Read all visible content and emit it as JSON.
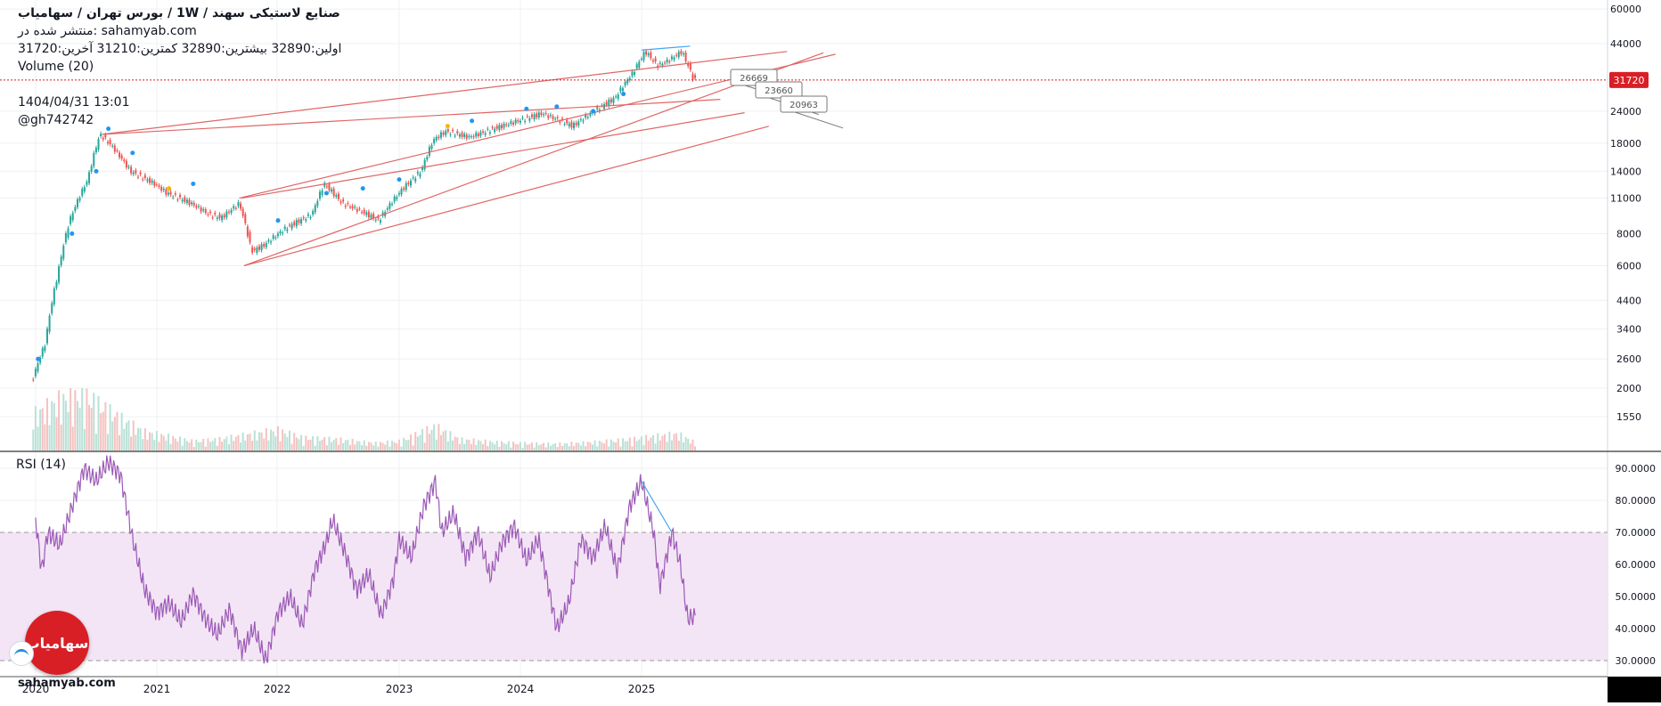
{
  "header": {
    "title": "صنایع لاستیکی سهند / 1W / بورس تهران / سهامیاب",
    "published": "منتشر شده در: sahamyab.com",
    "ohlc": "اولین:32890 بیشترین:32890 کمترین:31210 آخرین:31720",
    "volume_label": "Volume (20)",
    "datetime": "1404/04/31 13:01",
    "user": "@gh742742"
  },
  "rsi_label": "RSI (14)",
  "site_label": "sahamyab.com",
  "logo_text": "سهامیاب",
  "colors": {
    "up": "#26a69a",
    "down": "#ef5350",
    "trendline": "#e06666",
    "rsi": "#9b59b6",
    "rsi_band": "#f3e5f5",
    "last_price": "#d81f26",
    "blue_line": "#42a5f5"
  },
  "chart_data": [
    {
      "type": "candlestick",
      "title": "صنایع لاستیکی سهند / 1W",
      "scale": "log",
      "y_ticks": [
        60000,
        44000,
        31720,
        24000,
        18000,
        14000,
        11000,
        8000,
        6000,
        4400,
        3400,
        2600,
        2000,
        1550
      ],
      "last_price": 31720,
      "x_ticks": [
        "2020",
        "2021",
        "2022",
        "2023",
        "2024",
        "2025"
      ],
      "annotations": [
        "26669",
        "23660",
        "20963"
      ],
      "price_path": [
        [
          2020.0,
          2200
        ],
        [
          2020.1,
          3000
        ],
        [
          2020.2,
          5500
        ],
        [
          2020.3,
          9000
        ],
        [
          2020.45,
          13000
        ],
        [
          2020.55,
          19500
        ],
        [
          2020.65,
          17500
        ],
        [
          2020.8,
          14000
        ],
        [
          2021.0,
          12500
        ],
        [
          2021.1,
          11500
        ],
        [
          2021.3,
          10500
        ],
        [
          2021.45,
          9500
        ],
        [
          2021.55,
          9200
        ],
        [
          2021.7,
          10500
        ],
        [
          2021.8,
          6800
        ],
        [
          2021.9,
          7200
        ],
        [
          2022.1,
          8500
        ],
        [
          2022.3,
          9500
        ],
        [
          2022.4,
          12500
        ],
        [
          2022.55,
          10500
        ],
        [
          2022.7,
          9800
        ],
        [
          2022.85,
          9000
        ],
        [
          2023.05,
          12000
        ],
        [
          2023.2,
          14000
        ],
        [
          2023.3,
          18500
        ],
        [
          2023.4,
          20000
        ],
        [
          2023.6,
          19000
        ],
        [
          2023.8,
          20500
        ],
        [
          2024.0,
          22000
        ],
        [
          2024.2,
          23500
        ],
        [
          2024.35,
          22000
        ],
        [
          2024.45,
          21000
        ],
        [
          2024.6,
          23500
        ],
        [
          2024.8,
          27000
        ],
        [
          2024.95,
          34000
        ],
        [
          2025.05,
          41000
        ],
        [
          2025.15,
          36000
        ],
        [
          2025.25,
          38000
        ],
        [
          2025.35,
          41000
        ],
        [
          2025.45,
          31720
        ]
      ],
      "volume_path": [
        [
          2020.0,
          40
        ],
        [
          2020.2,
          55
        ],
        [
          2020.4,
          60
        ],
        [
          2020.55,
          48
        ],
        [
          2020.7,
          35
        ],
        [
          2020.9,
          20
        ],
        [
          2021.1,
          15
        ],
        [
          2021.3,
          10
        ],
        [
          2021.5,
          12
        ],
        [
          2021.8,
          18
        ],
        [
          2022.0,
          22
        ],
        [
          2022.2,
          14
        ],
        [
          2022.5,
          12
        ],
        [
          2022.8,
          8
        ],
        [
          2023.0,
          10
        ],
        [
          2023.3,
          26
        ],
        [
          2023.5,
          12
        ],
        [
          2023.8,
          9
        ],
        [
          2024.0,
          8
        ],
        [
          2024.3,
          7
        ],
        [
          2024.6,
          9
        ],
        [
          2024.9,
          12
        ],
        [
          2025.1,
          15
        ],
        [
          2025.3,
          18
        ],
        [
          2025.45,
          8
        ]
      ],
      "signal_dots": [
        [
          2020.02,
          2600
        ],
        [
          2020.3,
          8000
        ],
        [
          2020.5,
          14000
        ],
        [
          2020.6,
          20500
        ],
        [
          2020.8,
          16500
        ],
        [
          2021.1,
          12000
        ],
        [
          2021.3,
          12500
        ],
        [
          2022.0,
          9000
        ],
        [
          2022.4,
          11500
        ],
        [
          2022.7,
          12000
        ],
        [
          2023.0,
          13000
        ],
        [
          2023.4,
          21000
        ],
        [
          2023.6,
          22000
        ],
        [
          2024.05,
          24500
        ],
        [
          2024.3,
          25000
        ],
        [
          2024.6,
          24000
        ],
        [
          2024.85,
          28000
        ]
      ]
    },
    {
      "type": "line",
      "title": "RSI (14)",
      "ylim": [
        25,
        95
      ],
      "y_ticks": [
        "90.0000",
        "80.0000",
        "70.0000",
        "60.0000",
        "50.0000",
        "40.0000",
        "30.0000"
      ],
      "band": [
        30,
        70
      ],
      "values_path": [
        [
          2020.0,
          74
        ],
        [
          2020.05,
          58
        ],
        [
          2020.1,
          70
        ],
        [
          2020.2,
          66
        ],
        [
          2020.3,
          78
        ],
        [
          2020.4,
          90
        ],
        [
          2020.5,
          86
        ],
        [
          2020.6,
          92
        ],
        [
          2020.7,
          88
        ],
        [
          2020.8,
          68
        ],
        [
          2020.9,
          52
        ],
        [
          2021.0,
          45
        ],
        [
          2021.1,
          48
        ],
        [
          2021.2,
          42
        ],
        [
          2021.3,
          51
        ],
        [
          2021.4,
          43
        ],
        [
          2021.5,
          38
        ],
        [
          2021.6,
          46
        ],
        [
          2021.7,
          33
        ],
        [
          2021.8,
          40
        ],
        [
          2021.9,
          30
        ],
        [
          2022.0,
          45
        ],
        [
          2022.1,
          50
        ],
        [
          2022.2,
          41
        ],
        [
          2022.3,
          58
        ],
        [
          2022.4,
          67
        ],
        [
          2022.45,
          74
        ],
        [
          2022.55,
          64
        ],
        [
          2022.65,
          52
        ],
        [
          2022.75,
          57
        ],
        [
          2022.85,
          44
        ],
        [
          2022.95,
          55
        ],
        [
          2023.0,
          68
        ],
        [
          2023.1,
          62
        ],
        [
          2023.2,
          78
        ],
        [
          2023.3,
          86
        ],
        [
          2023.35,
          70
        ],
        [
          2023.45,
          76
        ],
        [
          2023.55,
          62
        ],
        [
          2023.65,
          70
        ],
        [
          2023.75,
          56
        ],
        [
          2023.85,
          67
        ],
        [
          2023.95,
          72
        ],
        [
          2024.05,
          61
        ],
        [
          2024.15,
          68
        ],
        [
          2024.3,
          40
        ],
        [
          2024.4,
          48
        ],
        [
          2024.5,
          68
        ],
        [
          2024.6,
          62
        ],
        [
          2024.7,
          72
        ],
        [
          2024.8,
          58
        ],
        [
          2024.9,
          78
        ],
        [
          2025.0,
          86
        ],
        [
          2025.1,
          70
        ],
        [
          2025.15,
          53
        ],
        [
          2025.25,
          70
        ],
        [
          2025.32,
          60
        ],
        [
          2025.38,
          43
        ],
        [
          2025.45,
          44
        ]
      ],
      "blue_trend": [
        [
          2025.0,
          86
        ],
        [
          2025.25,
          70
        ]
      ]
    }
  ]
}
